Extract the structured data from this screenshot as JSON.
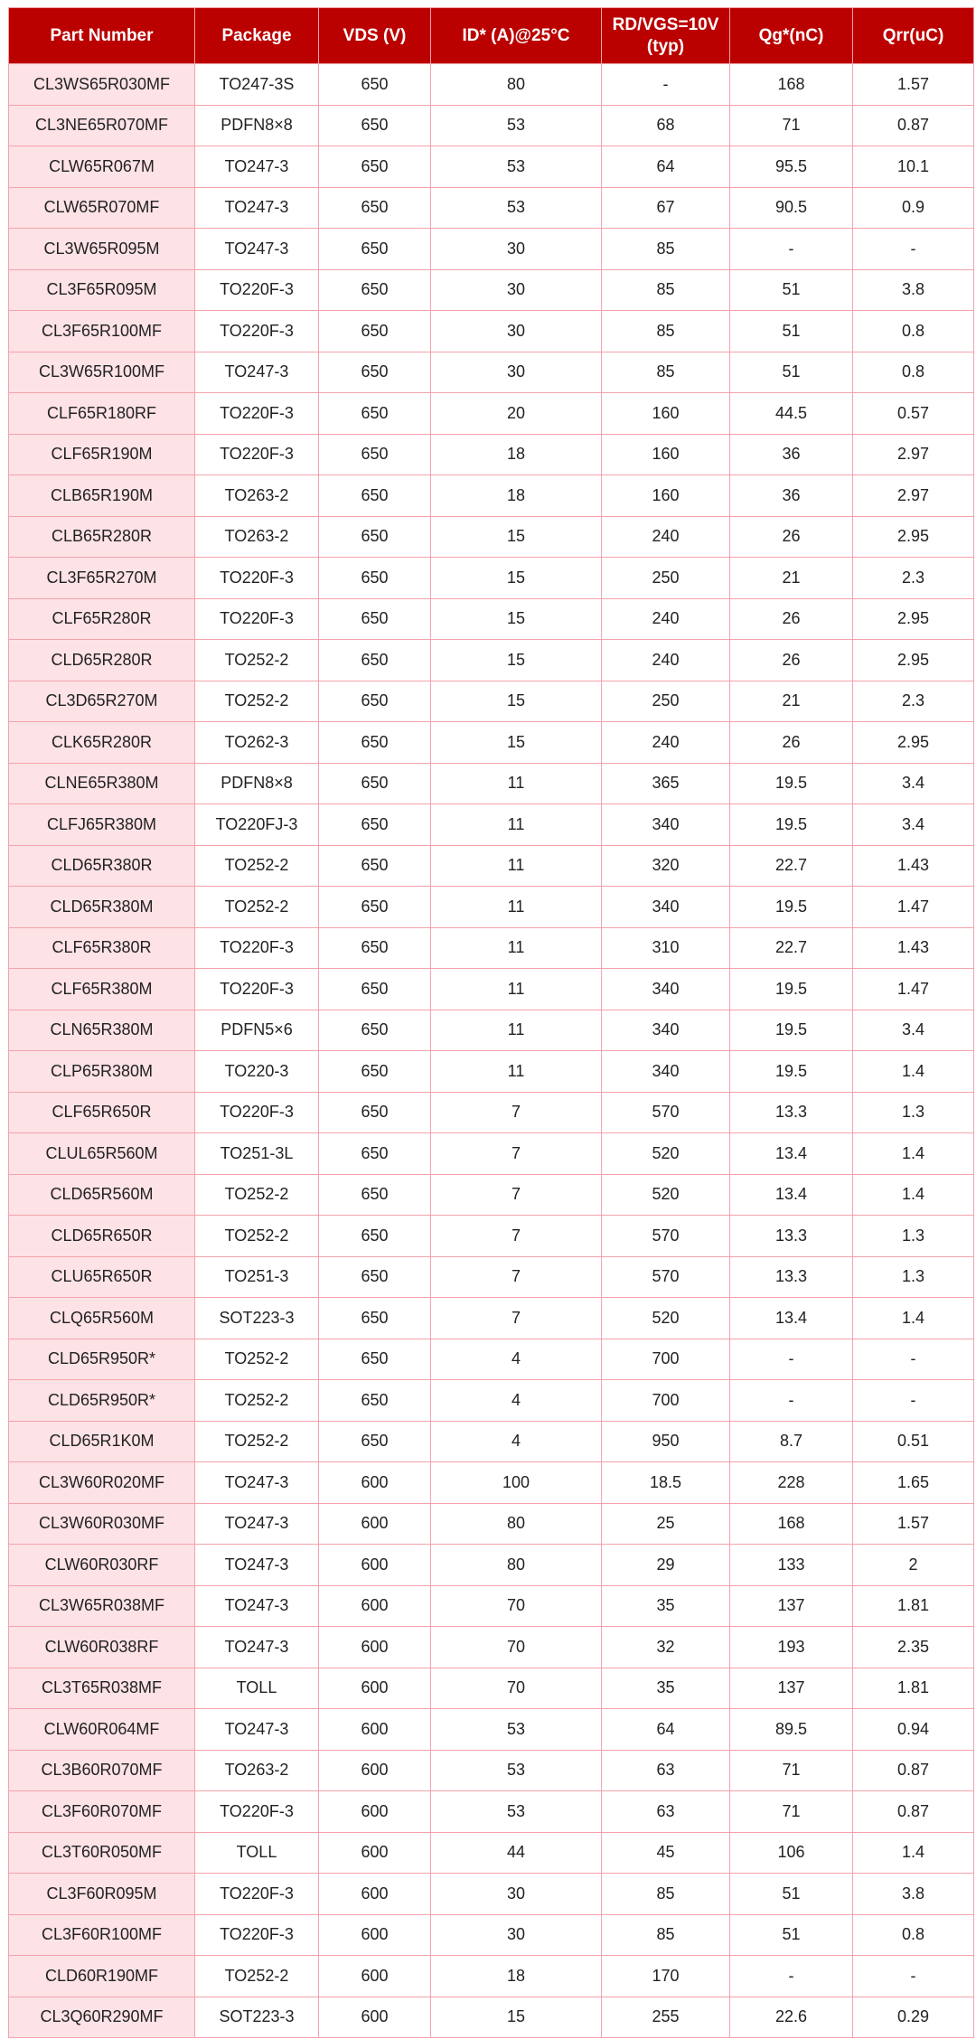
{
  "colors": {
    "header_bg": "#bb0000",
    "header_text": "#ffffff",
    "border": "#f4a3ab",
    "first_col_bg": "#fde2e6"
  },
  "table": {
    "headers": [
      "Part Number",
      "Package",
      "VDS (V)",
      "ID* (A)@25°C",
      "RD/VGS=10V (typ)",
      "Qg*(nC)",
      "Qrr(uC)"
    ],
    "rows": [
      [
        "CL3WS65R030MF",
        "TO247-3S",
        "650",
        "80",
        "-",
        "168",
        "1.57"
      ],
      [
        "CL3NE65R070MF",
        "PDFN8×8",
        "650",
        "53",
        "68",
        "71",
        "0.87"
      ],
      [
        "CLW65R067M",
        "TO247-3",
        "650",
        "53",
        "64",
        "95.5",
        "10.1"
      ],
      [
        "CLW65R070MF",
        "TO247-3",
        "650",
        "53",
        "67",
        "90.5",
        "0.9"
      ],
      [
        "CL3W65R095M",
        "TO247-3",
        "650",
        "30",
        "85",
        "-",
        "-"
      ],
      [
        "CL3F65R095M",
        "TO220F-3",
        "650",
        "30",
        "85",
        "51",
        "3.8"
      ],
      [
        "CL3F65R100MF",
        "TO220F-3",
        "650",
        "30",
        "85",
        "51",
        "0.8"
      ],
      [
        "CL3W65R100MF",
        "TO247-3",
        "650",
        "30",
        "85",
        "51",
        "0.8"
      ],
      [
        "CLF65R180RF",
        "TO220F-3",
        "650",
        "20",
        "160",
        "44.5",
        "0.57"
      ],
      [
        "CLF65R190M",
        "TO220F-3",
        "650",
        "18",
        "160",
        "36",
        "2.97"
      ],
      [
        "CLB65R190M",
        "TO263-2",
        "650",
        "18",
        "160",
        "36",
        "2.97"
      ],
      [
        "CLB65R280R",
        "TO263-2",
        "650",
        "15",
        "240",
        "26",
        "2.95"
      ],
      [
        "CL3F65R270M",
        "TO220F-3",
        "650",
        "15",
        "250",
        "21",
        "2.3"
      ],
      [
        "CLF65R280R",
        "TO220F-3",
        "650",
        "15",
        "240",
        "26",
        "2.95"
      ],
      [
        "CLD65R280R",
        "TO252-2",
        "650",
        "15",
        "240",
        "26",
        "2.95"
      ],
      [
        "CL3D65R270M",
        "TO252-2",
        "650",
        "15",
        "250",
        "21",
        "2.3"
      ],
      [
        "CLK65R280R",
        "TO262-3",
        "650",
        "15",
        "240",
        "26",
        "2.95"
      ],
      [
        "CLNE65R380M",
        "PDFN8×8",
        "650",
        "11",
        "365",
        "19.5",
        "3.4"
      ],
      [
        "CLFJ65R380M",
        "TO220FJ-3",
        "650",
        "11",
        "340",
        "19.5",
        "3.4"
      ],
      [
        "CLD65R380R",
        "TO252-2",
        "650",
        "11",
        "320",
        "22.7",
        "1.43"
      ],
      [
        "CLD65R380M",
        "TO252-2",
        "650",
        "11",
        "340",
        "19.5",
        "1.47"
      ],
      [
        "CLF65R380R",
        "TO220F-3",
        "650",
        "11",
        "310",
        "22.7",
        "1.43"
      ],
      [
        "CLF65R380M",
        "TO220F-3",
        "650",
        "11",
        "340",
        "19.5",
        "1.47"
      ],
      [
        "CLN65R380M",
        "PDFN5×6",
        "650",
        "11",
        "340",
        "19.5",
        "3.4"
      ],
      [
        "CLP65R380M",
        "TO220-3",
        "650",
        "11",
        "340",
        "19.5",
        "1.4"
      ],
      [
        "CLF65R650R",
        "TO220F-3",
        "650",
        "7",
        "570",
        "13.3",
        "1.3"
      ],
      [
        "CLUL65R560M",
        "TO251-3L",
        "650",
        "7",
        "520",
        "13.4",
        "1.4"
      ],
      [
        "CLD65R560M",
        "TO252-2",
        "650",
        "7",
        "520",
        "13.4",
        "1.4"
      ],
      [
        "CLD65R650R",
        "TO252-2",
        "650",
        "7",
        "570",
        "13.3",
        "1.3"
      ],
      [
        "CLU65R650R",
        "TO251-3",
        "650",
        "7",
        "570",
        "13.3",
        "1.3"
      ],
      [
        "CLQ65R560M",
        "SOT223-3",
        "650",
        "7",
        "520",
        "13.4",
        "1.4"
      ],
      [
        "CLD65R950R*",
        "TO252-2",
        "650",
        "4",
        "700",
        "-",
        "-"
      ],
      [
        "CLD65R950R*",
        "TO252-2",
        "650",
        "4",
        "700",
        "-",
        "-"
      ],
      [
        "CLD65R1K0M",
        "TO252-2",
        "650",
        "4",
        "950",
        "8.7",
        "0.51"
      ],
      [
        "CL3W60R020MF",
        "TO247-3",
        "600",
        "100",
        "18.5",
        "228",
        "1.65"
      ],
      [
        "CL3W60R030MF",
        "TO247-3",
        "600",
        "80",
        "25",
        "168",
        "1.57"
      ],
      [
        "CLW60R030RF",
        "TO247-3",
        "600",
        "80",
        "29",
        "133",
        "2"
      ],
      [
        "CL3W65R038MF",
        "TO247-3",
        "600",
        "70",
        "35",
        "137",
        "1.81"
      ],
      [
        "CLW60R038RF",
        "TO247-3",
        "600",
        "70",
        "32",
        "193",
        "2.35"
      ],
      [
        "CL3T65R038MF",
        "TOLL",
        "600",
        "70",
        "35",
        "137",
        "1.81"
      ],
      [
        "CLW60R064MF",
        "TO247-3",
        "600",
        "53",
        "64",
        "89.5",
        "0.94"
      ],
      [
        "CL3B60R070MF",
        "TO263-2",
        "600",
        "53",
        "63",
        "71",
        "0.87"
      ],
      [
        "CL3F60R070MF",
        "TO220F-3",
        "600",
        "53",
        "63",
        "71",
        "0.87"
      ],
      [
        "CL3T60R050MF",
        "TOLL",
        "600",
        "44",
        "45",
        "106",
        "1.4"
      ],
      [
        "CL3F60R095M",
        "TO220F-3",
        "600",
        "30",
        "85",
        "51",
        "3.8"
      ],
      [
        "CL3F60R100MF",
        "TO220F-3",
        "600",
        "30",
        "85",
        "51",
        "0.8"
      ],
      [
        "CLD60R190MF",
        "TO252-2",
        "600",
        "18",
        "170",
        "-",
        "-"
      ],
      [
        "CL3Q60R290MF",
        "SOT223-3",
        "600",
        "15",
        "255",
        "22.6",
        "0.29"
      ]
    ]
  }
}
